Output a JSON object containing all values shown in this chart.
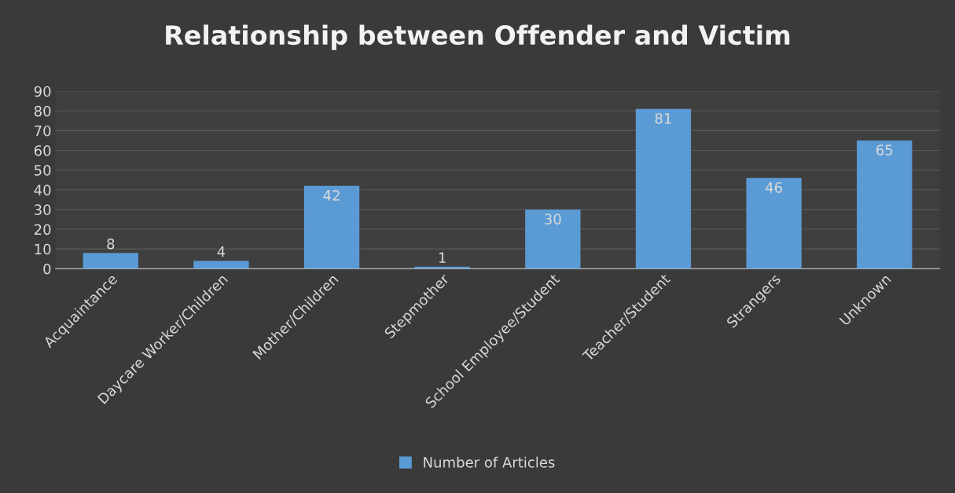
{
  "chart_data": {
    "type": "bar",
    "title": "Relationship between Offender and Victim",
    "categories": [
      "Acquaintance",
      "Daycare Worker/Children",
      "Mother/Children",
      "Stepmother",
      "School Employee/Student",
      "Teacher/Student",
      "Strangers",
      "Unknown"
    ],
    "series": [
      {
        "name": "Number of Articles",
        "color": "#5b9bd5",
        "values": [
          8,
          4,
          42,
          1,
          30,
          81,
          46,
          65
        ]
      }
    ],
    "ylim": [
      0,
      90
    ],
    "yticks": [
      0,
      10,
      20,
      30,
      40,
      50,
      60,
      70,
      80,
      90
    ],
    "grid": "y",
    "legend": "bottom",
    "data_labels": true
  }
}
